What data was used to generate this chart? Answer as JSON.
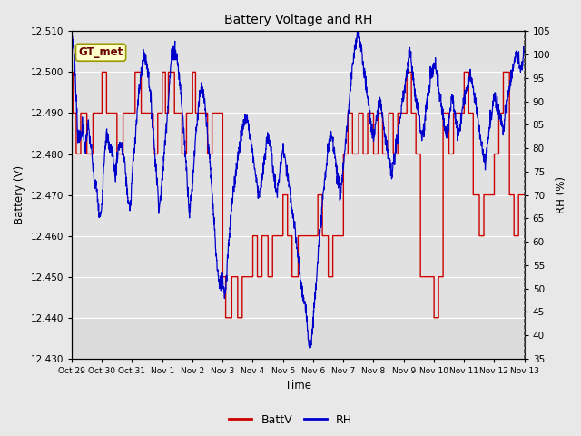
{
  "title": "Battery Voltage and RH",
  "xlabel": "Time",
  "ylabel_left": "Battery (V)",
  "ylabel_right": "RH (%)",
  "xlim": [
    0,
    15
  ],
  "ylim_left": [
    12.43,
    12.51
  ],
  "ylim_right": [
    35,
    105
  ],
  "yticks_left": [
    12.43,
    12.44,
    12.45,
    12.46,
    12.47,
    12.48,
    12.49,
    12.5,
    12.51
  ],
  "yticks_right": [
    35,
    40,
    45,
    50,
    55,
    60,
    65,
    70,
    75,
    80,
    85,
    90,
    95,
    100,
    105
  ],
  "xtick_labels": [
    "Oct 29",
    "Oct 30",
    "Oct 31",
    "Nov 1",
    "Nov 2",
    "Nov 3",
    "Nov 4",
    "Nov 5",
    "Nov 6",
    "Nov 7",
    "Nov 8",
    "Nov 9",
    "Nov 10",
    "Nov 11",
    "Nov 12",
    "Nov 13"
  ],
  "xtick_positions": [
    0,
    1,
    2,
    3,
    4,
    5,
    6,
    7,
    8,
    9,
    10,
    11,
    12,
    13,
    14,
    15
  ],
  "grid_color": "#ffffff",
  "fig_bg_color": "#e8e8e8",
  "plot_bg_color": "#ebebeb",
  "plot_inner_bg": "#e0e0e0",
  "batt_color": "#cc0000",
  "rh_color": "#0000cc",
  "label_box_facecolor": "#ffffcc",
  "label_box_edgecolor": "#999900",
  "label_box_text": "GT_met",
  "label_text_color": "#660000",
  "legend_items": [
    "BattV",
    "RH"
  ]
}
